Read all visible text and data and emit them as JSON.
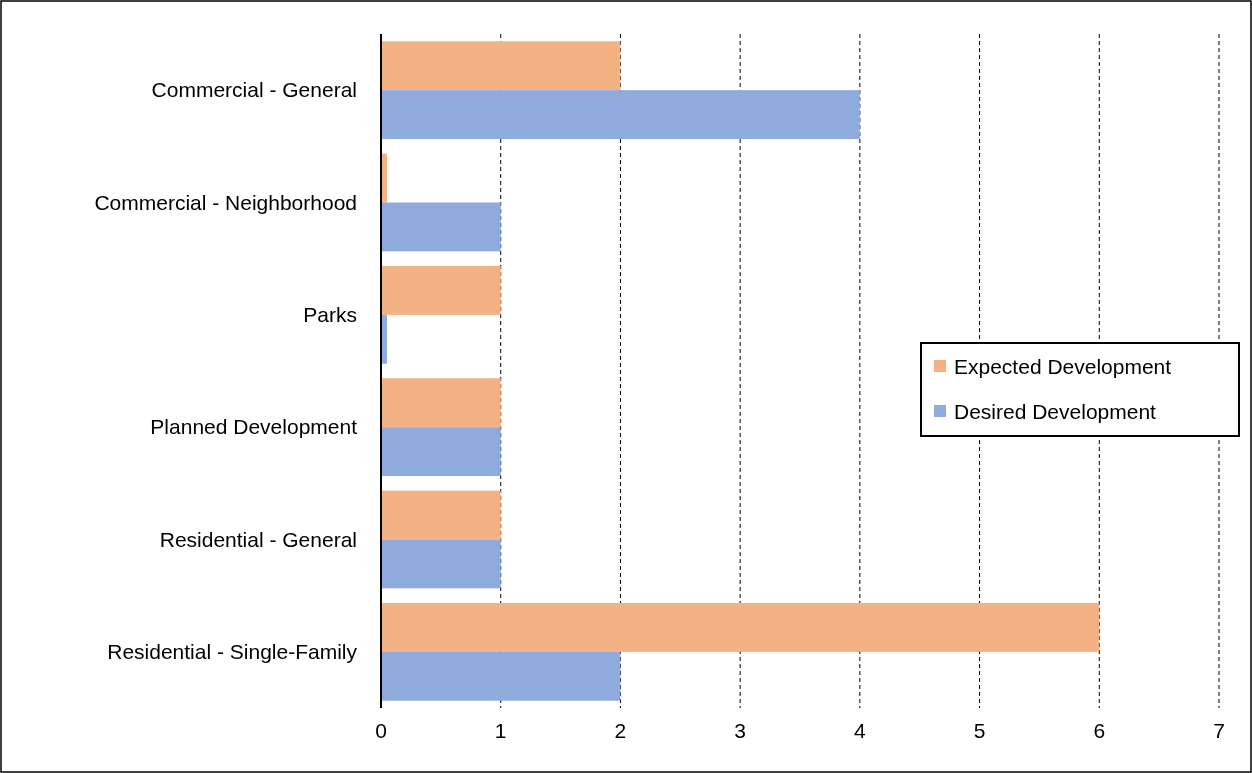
{
  "chart_data": {
    "type": "bar",
    "orientation": "horizontal",
    "categories": [
      "Commercial - General",
      "Commercial - Neighborhood",
      "Parks",
      "Planned Development",
      "Residential - General",
      "Residential - Single-Family"
    ],
    "series": [
      {
        "name": "Expected Development",
        "color": "#f4b183",
        "values": [
          2,
          0.05,
          1,
          1,
          1,
          6
        ]
      },
      {
        "name": "Desired Development",
        "color": "#8faadc",
        "values": [
          4,
          1,
          0.05,
          1,
          1,
          2
        ]
      }
    ],
    "xlim": [
      0,
      7
    ],
    "xticks": [
      0,
      1,
      2,
      3,
      4,
      5,
      6,
      7
    ],
    "grid": "x",
    "legend": "right"
  }
}
